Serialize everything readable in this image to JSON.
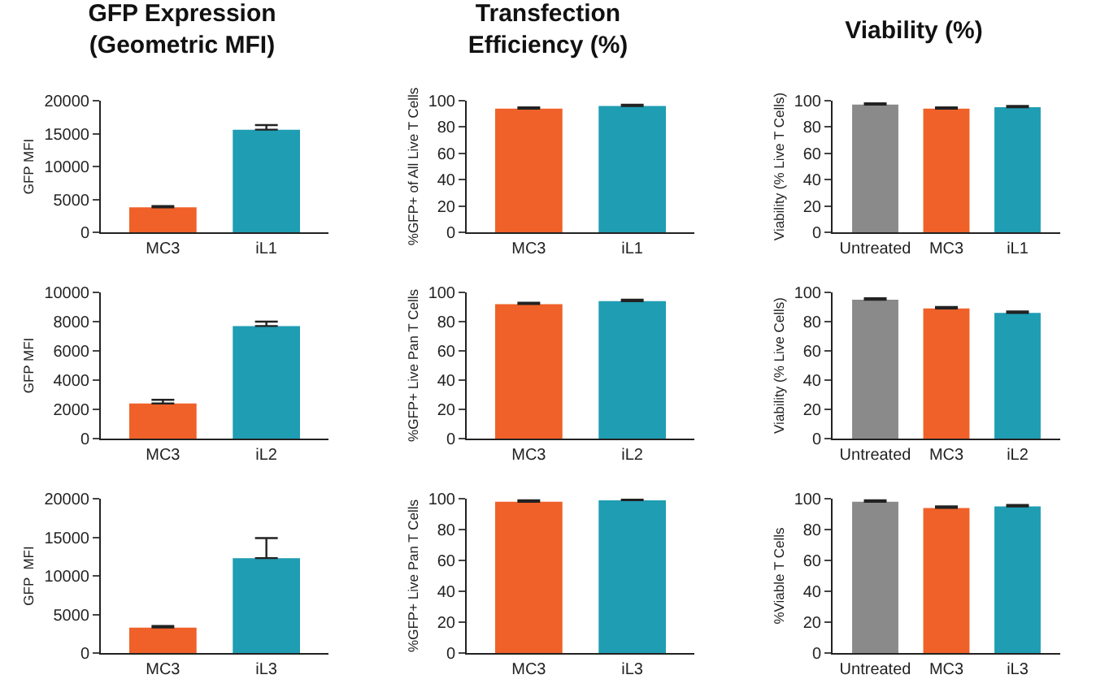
{
  "chart_data": [
    {
      "type": "bar",
      "title": "GFP Expression\n(Geometric MFI)",
      "ylabel": "GFP MFI",
      "categories": [
        "MC3",
        "iL1"
      ],
      "values": [
        3800,
        15600
      ],
      "colors": [
        "#ef6128",
        "#1f9db3"
      ],
      "errors": [
        [
          3800,
          4000
        ],
        [
          15600,
          16300
        ]
      ],
      "ylim": [
        0,
        20000
      ],
      "yticks": [
        0,
        5000,
        10000,
        15000,
        20000
      ]
    },
    {
      "type": "bar",
      "title": "Transfection\nEfficiency (%)",
      "ylabel": "%GFP+ of All Live T Cells",
      "categories": [
        "MC3",
        "iL1"
      ],
      "values": [
        94,
        96
      ],
      "colors": [
        "#ef6128",
        "#1f9db3"
      ],
      "errors": [
        [
          94,
          95
        ],
        [
          96,
          97
        ]
      ],
      "ylim": [
        0,
        100
      ],
      "yticks": [
        0,
        20,
        40,
        60,
        80,
        100
      ]
    },
    {
      "type": "bar",
      "title": "Viability (%)",
      "ylabel": "Viability (% Live T Cells)",
      "categories": [
        "Untreated",
        "MC3",
        "iL1"
      ],
      "values": [
        97,
        94,
        95
      ],
      "colors": [
        "#8a8a8a",
        "#ef6128",
        "#1f9db3"
      ],
      "errors": [
        [
          97,
          98
        ],
        [
          94,
          95
        ],
        [
          95,
          96
        ]
      ],
      "ylim": [
        0,
        100
      ],
      "yticks": [
        0,
        20,
        40,
        60,
        80,
        100
      ]
    },
    {
      "type": "bar",
      "ylabel": "GFP MFI",
      "categories": [
        "MC3",
        "iL2"
      ],
      "values": [
        2400,
        7700
      ],
      "colors": [
        "#ef6128",
        "#1f9db3"
      ],
      "errors": [
        [
          2400,
          2650
        ],
        [
          7700,
          8000
        ]
      ],
      "ylim": [
        0,
        10000
      ],
      "yticks": [
        0,
        2000,
        4000,
        6000,
        8000,
        10000
      ]
    },
    {
      "type": "bar",
      "ylabel": "%GFP+ Live Pan T Cells",
      "categories": [
        "MC3",
        "iL2"
      ],
      "values": [
        92,
        94
      ],
      "colors": [
        "#ef6128",
        "#1f9db3"
      ],
      "errors": [
        [
          92,
          93
        ],
        [
          94,
          95
        ]
      ],
      "ylim": [
        0,
        100
      ],
      "yticks": [
        0,
        20,
        40,
        60,
        80,
        100
      ]
    },
    {
      "type": "bar",
      "ylabel": "Viability (% Live Cells)",
      "categories": [
        "Untreated",
        "MC3",
        "iL2"
      ],
      "values": [
        95,
        89,
        86
      ],
      "colors": [
        "#8a8a8a",
        "#ef6128",
        "#1f9db3"
      ],
      "errors": [
        [
          95,
          96
        ],
        [
          89,
          90
        ],
        [
          86,
          87
        ]
      ],
      "ylim": [
        0,
        100
      ],
      "yticks": [
        0,
        20,
        40,
        60,
        80,
        100
      ]
    },
    {
      "type": "bar",
      "ylabel": "GFP  MFI",
      "categories": [
        "MC3",
        "iL3"
      ],
      "values": [
        3300,
        12300
      ],
      "colors": [
        "#ef6128",
        "#1f9db3"
      ],
      "errors": [
        [
          3300,
          3500
        ],
        [
          12300,
          14900
        ]
      ],
      "ylim": [
        0,
        20000
      ],
      "yticks": [
        0,
        5000,
        10000,
        15000,
        20000
      ]
    },
    {
      "type": "bar",
      "ylabel": "%GFP+ Live Pan T Cells",
      "categories": [
        "MC3",
        "iL3"
      ],
      "values": [
        98,
        99
      ],
      "colors": [
        "#ef6128",
        "#1f9db3"
      ],
      "errors": [
        [
          98,
          99
        ],
        [
          99,
          100
        ]
      ],
      "ylim": [
        0,
        100
      ],
      "yticks": [
        0,
        20,
        40,
        60,
        80,
        100
      ]
    },
    {
      "type": "bar",
      "ylabel": "%Viable T Cells",
      "categories": [
        "Untreated",
        "MC3",
        "iL3"
      ],
      "values": [
        98,
        94,
        95
      ],
      "colors": [
        "#8a8a8a",
        "#ef6128",
        "#1f9db3"
      ],
      "errors": [
        [
          98,
          99
        ],
        [
          94,
          95
        ],
        [
          95,
          96
        ]
      ],
      "ylim": [
        0,
        100
      ],
      "yticks": [
        0,
        20,
        40,
        60,
        80,
        100
      ]
    }
  ]
}
